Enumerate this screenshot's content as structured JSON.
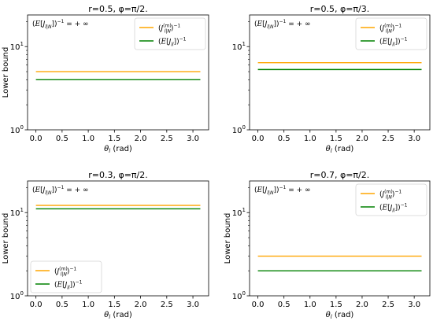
{
  "chart_data": [
    {
      "type": "line",
      "title": "r=0.5, φ=π/2.",
      "xlabel": "θl (rad)",
      "ylabel": "Lower bound",
      "yscale": "log",
      "xlim": [
        -0.16,
        3.3
      ],
      "ylim": [
        1,
        24
      ],
      "xticks": [
        0.0,
        0.5,
        1.0,
        1.5,
        2.0,
        2.5,
        3.0
      ],
      "xtick_labels": [
        "0.0",
        "0.5",
        "1.0",
        "1.5",
        "2.0",
        "2.5",
        "3.0"
      ],
      "yticks": [
        1,
        10
      ],
      "ytick_labels": [
        "10⁰",
        "10¹"
      ],
      "annotation": "(E[Jl|N])⁻¹ = + ∞",
      "legend_position": "upper right",
      "series": [
        {
          "name": "(Jl|N(m))⁻¹",
          "color": "#ffa500",
          "x": [
            0.0,
            3.14159
          ],
          "y": [
            5.0,
            5.0
          ]
        },
        {
          "name": "(E[Jll])⁻¹",
          "color": "#008000",
          "x": [
            0.0,
            3.14159
          ],
          "y": [
            4.0,
            4.0
          ]
        }
      ]
    },
    {
      "type": "line",
      "title": "r=0.5, φ=π/3.",
      "xlabel": "θl (rad)",
      "ylabel": "",
      "yscale": "log",
      "xlim": [
        -0.16,
        3.3
      ],
      "ylim": [
        1,
        24
      ],
      "xticks": [
        0.0,
        0.5,
        1.0,
        1.5,
        2.0,
        2.5,
        3.0
      ],
      "xtick_labels": [
        "0.0",
        "0.5",
        "1.0",
        "1.5",
        "2.0",
        "2.5",
        "3.0"
      ],
      "yticks": [
        1,
        10
      ],
      "ytick_labels": [
        "10⁰",
        "10¹"
      ],
      "annotation": "(E[Jl|N])⁻¹ = + ∞",
      "legend_position": "upper right",
      "series": [
        {
          "name": "(Jl|N(m))⁻¹",
          "color": "#ffa500",
          "x": [
            0.0,
            3.14159
          ],
          "y": [
            6.4,
            6.4
          ]
        },
        {
          "name": "(E[Jll])⁻¹",
          "color": "#008000",
          "x": [
            0.0,
            3.14159
          ],
          "y": [
            5.3,
            5.3
          ]
        }
      ]
    },
    {
      "type": "line",
      "title": "r=0.3, φ=π/2.",
      "xlabel": "θl (rad)",
      "ylabel": "Lower bound",
      "yscale": "log",
      "xlim": [
        -0.16,
        3.3
      ],
      "ylim": [
        1,
        24
      ],
      "xticks": [
        0.0,
        0.5,
        1.0,
        1.5,
        2.0,
        2.5,
        3.0
      ],
      "xtick_labels": [
        "0.0",
        "0.5",
        "1.0",
        "1.5",
        "2.0",
        "2.5",
        "3.0"
      ],
      "yticks": [
        1,
        10
      ],
      "ytick_labels": [
        "10⁰",
        "10¹"
      ],
      "annotation": "(E[Jl|N])⁻¹ = + ∞",
      "legend_position": "lower left",
      "series": [
        {
          "name": "(Jl|N(m))⁻¹",
          "color": "#ffa500",
          "x": [
            0.0,
            3.14159
          ],
          "y": [
            12.2,
            12.2
          ]
        },
        {
          "name": "(E[Jll])⁻¹",
          "color": "#008000",
          "x": [
            0.0,
            3.14159
          ],
          "y": [
            11.1,
            11.1
          ]
        }
      ]
    },
    {
      "type": "line",
      "title": "r=0.7, φ=π/2.",
      "xlabel": "θl (rad)",
      "ylabel": "Lower bound",
      "yscale": "log",
      "xlim": [
        -0.16,
        3.3
      ],
      "ylim": [
        1,
        24
      ],
      "xticks": [
        0.0,
        0.5,
        1.0,
        1.5,
        2.0,
        2.5,
        3.0
      ],
      "xtick_labels": [
        "0.0",
        "0.5",
        "1.0",
        "1.5",
        "2.0",
        "2.5",
        "3.0"
      ],
      "yticks": [
        1,
        10
      ],
      "ytick_labels": [
        "10⁰",
        "10¹"
      ],
      "annotation": "(E[Jl|N])⁻¹ = + ∞",
      "legend_position": "upper right",
      "series": [
        {
          "name": "(Jl|N(m))⁻¹",
          "color": "#ffa500",
          "x": [
            0.0,
            3.14159
          ],
          "y": [
            3.0,
            3.0
          ]
        },
        {
          "name": "(E[Jll])⁻¹",
          "color": "#008000",
          "x": [
            0.0,
            3.14159
          ],
          "y": [
            2.0,
            2.0
          ]
        }
      ]
    }
  ]
}
